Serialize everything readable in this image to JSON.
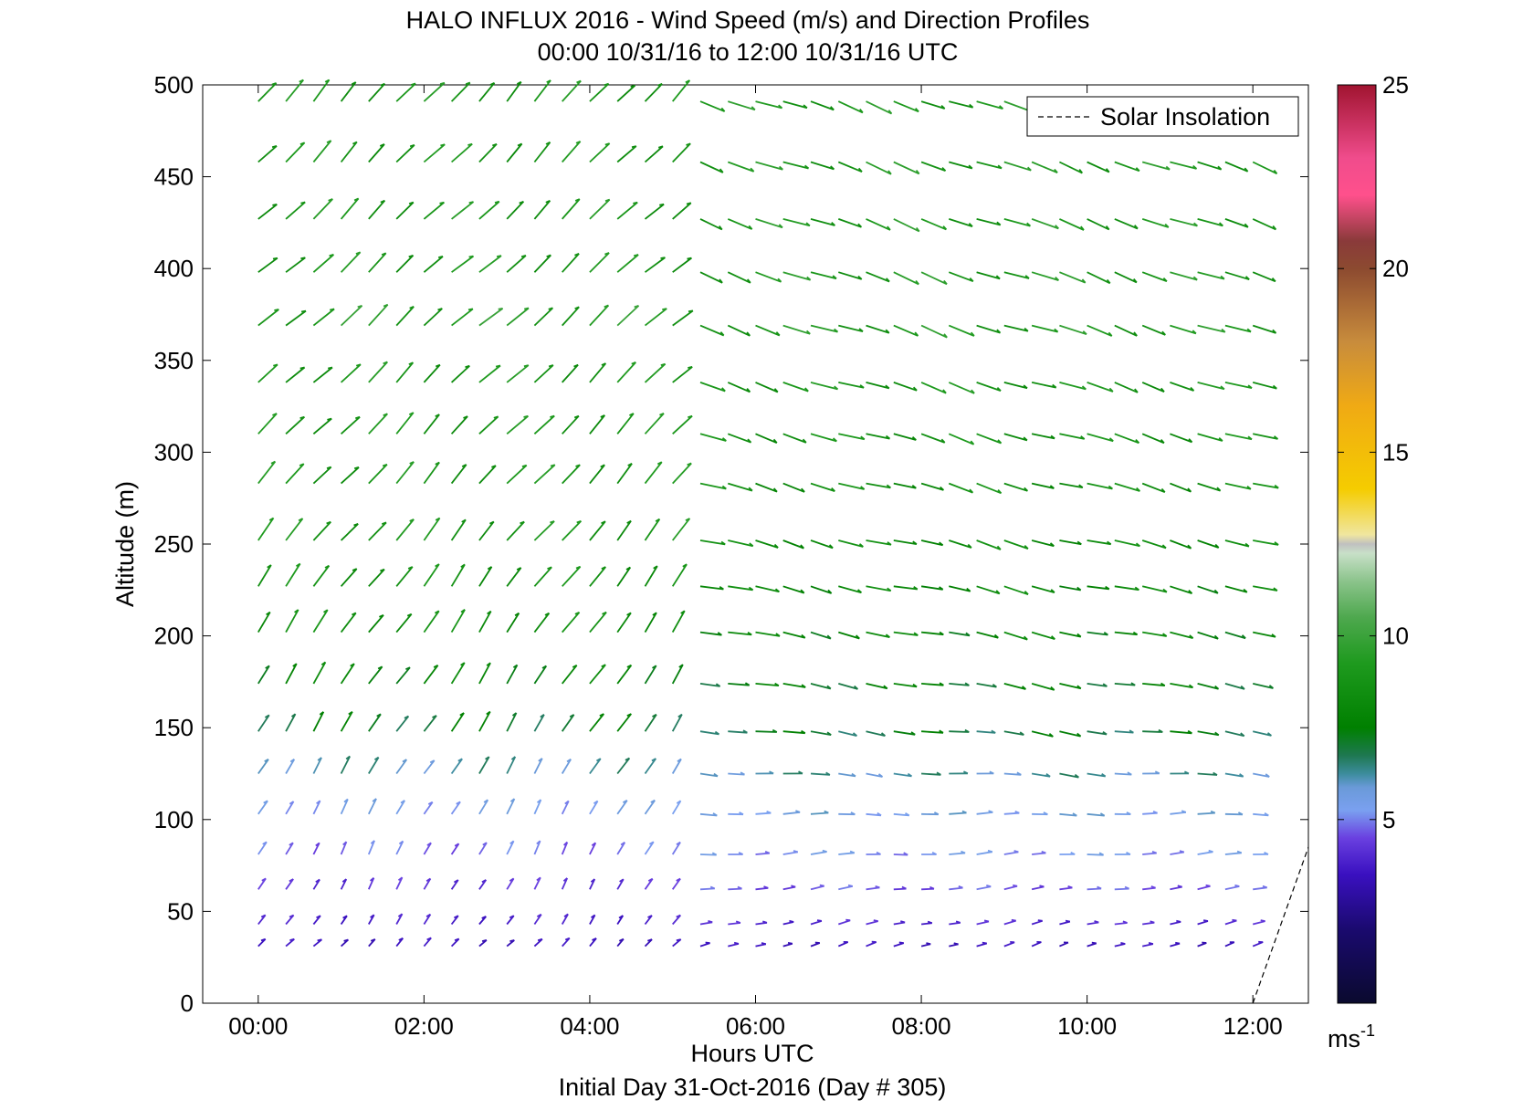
{
  "chart_data": {
    "type": "quiver",
    "title": "HALO INFLUX 2016 - Wind Speed (m/s) and Direction Profiles",
    "subtitle": "00:00 10/31/16 to 12:00 10/31/16  UTC",
    "xlabel": "Hours UTC",
    "ylabel": "Altitude (m)",
    "footer": "Initial Day 31-Oct-2016 (Day # 305)",
    "xlim": [
      -0.67,
      12.67
    ],
    "ylim": [
      0,
      500
    ],
    "x_ticks": [
      0,
      2,
      4,
      6,
      8,
      10,
      12
    ],
    "x_tick_labels": [
      "00:00",
      "02:00",
      "04:00",
      "06:00",
      "08:00",
      "10:00",
      "12:00"
    ],
    "y_ticks": [
      0,
      50,
      100,
      150,
      200,
      250,
      300,
      350,
      400,
      450,
      500
    ],
    "y_tick_labels": [
      "0",
      "50",
      "100",
      "150",
      "200",
      "250",
      "300",
      "350",
      "400",
      "450",
      "500"
    ],
    "grid": false,
    "legend": {
      "position": "top-right",
      "entries": [
        {
          "label": "Solar Insolation",
          "style": "dashed",
          "color": "#000000"
        }
      ]
    },
    "solar_insolation": {
      "x": [
        12.0,
        12.67
      ],
      "y": [
        0,
        85
      ]
    },
    "colorbar": {
      "range": [
        0,
        25
      ],
      "ticks": [
        5,
        10,
        15,
        20,
        25
      ],
      "tick_labels": [
        "5",
        "10",
        "15",
        "20",
        "25"
      ],
      "unit_label": "ms",
      "unit_exponent": "-1",
      "stops": [
        [
          0.0,
          "#0a0a2e"
        ],
        [
          0.08,
          "#1a0a6e"
        ],
        [
          0.14,
          "#3a10c0"
        ],
        [
          0.18,
          "#6a40e0"
        ],
        [
          0.21,
          "#7aa0f0"
        ],
        [
          0.235,
          "#6a9ad8"
        ],
        [
          0.25,
          "#3c8c9c"
        ],
        [
          0.27,
          "#1e7850"
        ],
        [
          0.3,
          "#008000"
        ],
        [
          0.37,
          "#1e9a1e"
        ],
        [
          0.42,
          "#4ea84e"
        ],
        [
          0.46,
          "#8cc48c"
        ],
        [
          0.49,
          "#c8e0c8"
        ],
        [
          0.5,
          "#c0c0c0"
        ],
        [
          0.51,
          "#f0e6a0"
        ],
        [
          0.56,
          "#f5cc00"
        ],
        [
          0.65,
          "#f0aa14"
        ],
        [
          0.72,
          "#c88c3c"
        ],
        [
          0.8,
          "#8c4a30"
        ],
        [
          0.83,
          "#8a3a3a"
        ],
        [
          0.88,
          "#ff508c"
        ],
        [
          0.92,
          "#f04c8c"
        ],
        [
          1.0,
          "#a01430"
        ]
      ]
    },
    "hours_early": [
      0.0,
      0.333,
      0.667,
      1.0,
      1.333,
      1.667,
      2.0,
      2.333,
      2.667,
      3.0,
      3.333,
      3.667,
      4.0,
      4.333,
      4.667,
      5.0
    ],
    "hours_late": [
      5.333,
      5.667,
      6.0,
      6.333,
      6.667,
      7.0,
      7.333,
      7.667,
      8.0,
      8.333,
      8.667,
      9.0,
      9.333,
      9.667,
      10.0,
      10.333,
      10.667,
      11.0,
      11.333,
      11.667,
      12.0
    ],
    "altitudes": [
      31,
      43,
      62,
      81,
      103,
      125,
      148,
      174,
      202,
      227,
      252,
      283,
      310,
      338,
      369,
      398,
      427,
      458,
      491
    ],
    "early_profile": {
      "speed_by_altitude": [
        3.5,
        3.8,
        4.2,
        4.8,
        5.4,
        6.2,
        7.2,
        7.8,
        8.4,
        8.5,
        8.8,
        8.8,
        8.8,
        8.8,
        9.2,
        8.8,
        8.8,
        8.8,
        8.8
      ],
      "direction_from_deg": [
        225,
        215,
        210,
        208,
        210,
        212,
        213,
        214,
        215,
        217,
        220,
        222,
        224,
        226,
        228,
        228,
        226,
        224,
        222
      ]
    },
    "late_profile": {
      "speed_by_altitude": [
        3.5,
        4.0,
        4.6,
        5.2,
        5.6,
        6.2,
        7.0,
        7.4,
        7.8,
        8.0,
        8.2,
        8.4,
        8.6,
        8.8,
        9.0,
        9.0,
        9.0,
        9.0,
        9.0
      ],
      "direction_from_deg": [
        252,
        258,
        262,
        266,
        270,
        275,
        278,
        280,
        282,
        283,
        285,
        286,
        287,
        288,
        289,
        290,
        290,
        290,
        290
      ]
    }
  }
}
